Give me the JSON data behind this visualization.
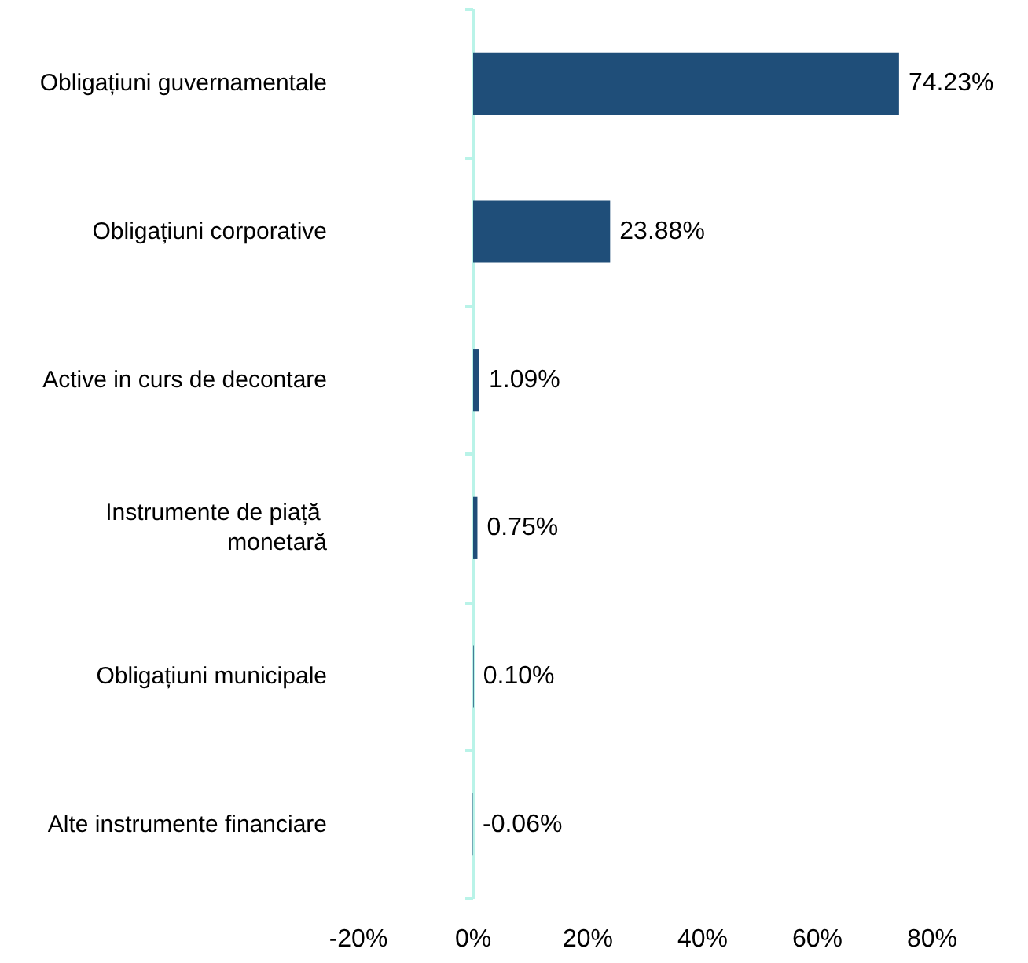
{
  "chart_data": {
    "type": "bar",
    "orientation": "horizontal",
    "categories": [
      "Obligațiuni guvernamentale",
      "Obligațiuni corporative",
      "Active in curs de decontare",
      "Instrumente de piață monetară",
      "Obligațiuni municipale",
      "Alte instrumente financiare"
    ],
    "values": [
      74.23,
      23.88,
      1.09,
      0.75,
      0.1,
      -0.06
    ],
    "color": "#1f4e79",
    "value_labels": [
      "74.23%",
      "23.88%",
      "1.09%",
      "0.75%",
      "0.10%",
      "-0.06%"
    ],
    "xlim": [
      -20,
      80
    ],
    "xticks": [
      {
        "value": -20,
        "label": "-20%"
      },
      {
        "value": 0,
        "label": "0%"
      },
      {
        "value": 20,
        "label": "20%"
      },
      {
        "value": 40,
        "label": "40%"
      },
      {
        "value": 60,
        "label": "60%"
      },
      {
        "value": 80,
        "label": "80%"
      }
    ],
    "ref_lines": [
      {
        "axis": "x",
        "value": 0,
        "color": "#b9f3e8"
      }
    ]
  }
}
